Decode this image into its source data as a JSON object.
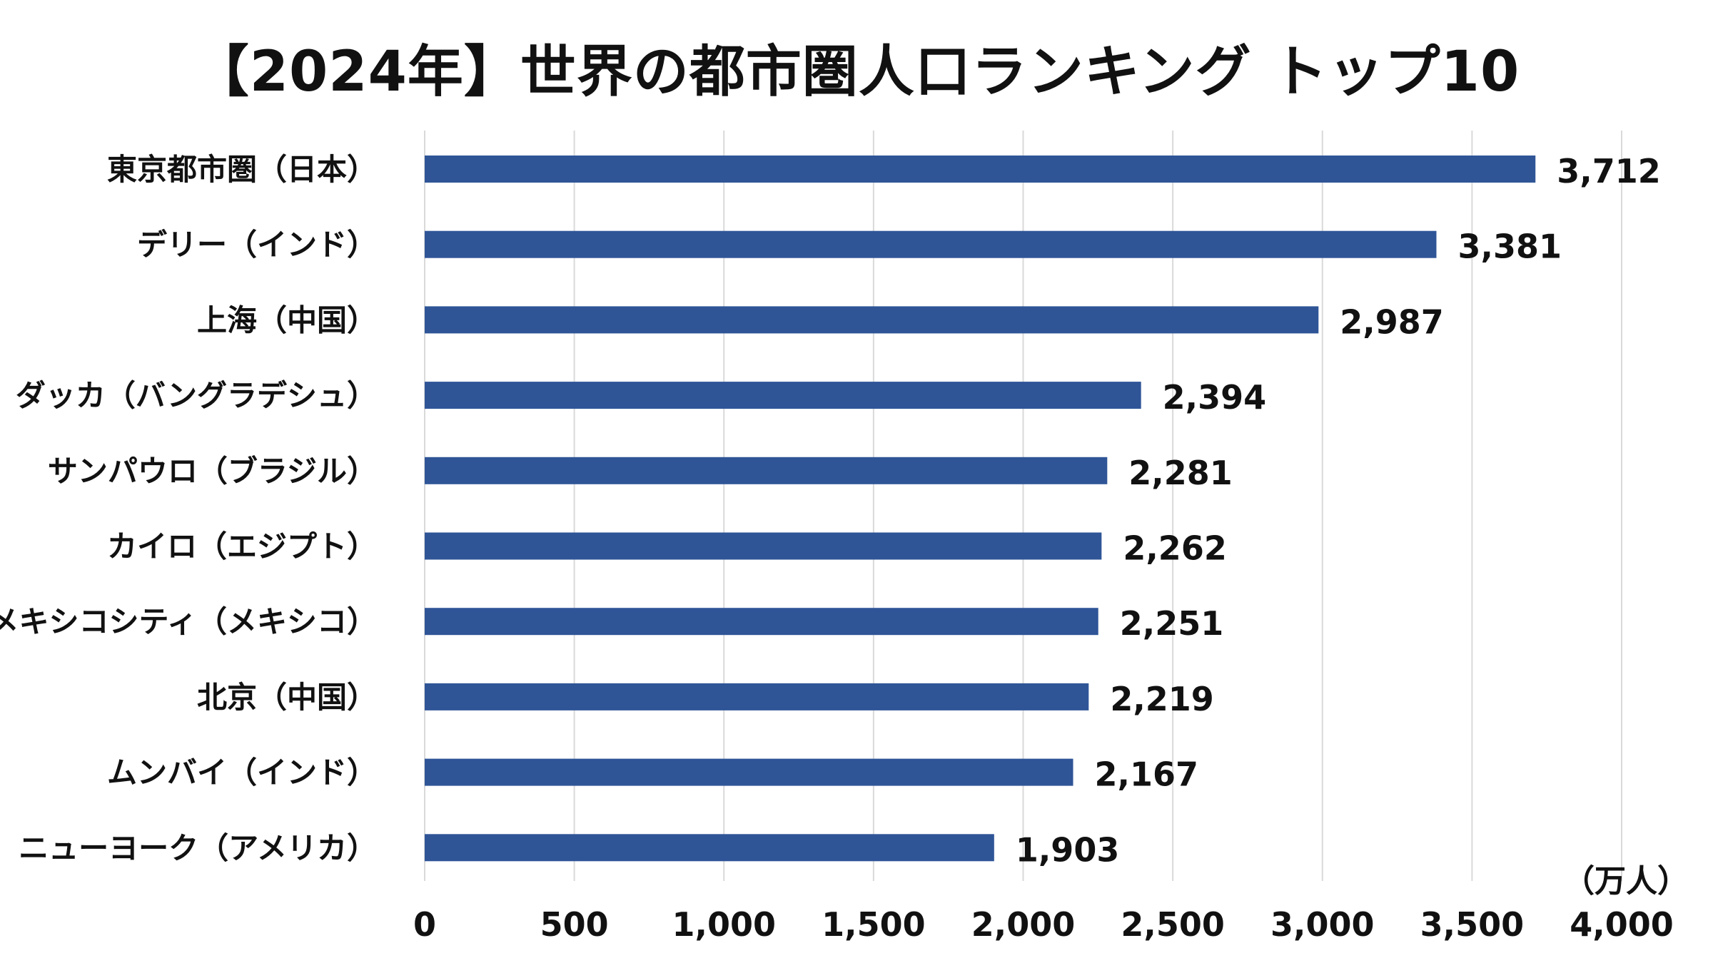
{
  "chart_data": {
    "type": "bar",
    "orientation": "horizontal",
    "title": "【2024年】世界の都市圏人口ランキング トップ10",
    "unit": "（万人）",
    "categories": [
      "東京都市圏（日本）",
      "デリー（インド）",
      "上海（中国）",
      "ダッカ（バングラデシュ）",
      "サンパウロ（ブラジル）",
      "カイロ（エジプト）",
      "メキシコシティ（メキシコ）",
      "北京（中国）",
      "ムンバイ（インド）",
      "ニューヨーク（アメリカ）"
    ],
    "values": [
      3712,
      3381,
      2987,
      2394,
      2281,
      2262,
      2251,
      2219,
      2167,
      1903
    ],
    "value_labels": [
      "3,712",
      "3,381",
      "2,987",
      "2,394",
      "2,281",
      "2,262",
      "2,251",
      "2,219",
      "2,167",
      "1,903"
    ],
    "xlim": [
      0,
      4000
    ],
    "xticks": [
      0,
      500,
      1000,
      1500,
      2000,
      2500,
      3000,
      3500,
      4000
    ],
    "xtick_labels": [
      "0",
      "500",
      "1,000",
      "1,500",
      "2,000",
      "2,500",
      "3,000",
      "3,500",
      "4,000"
    ],
    "grid": "vertical",
    "legend": "none",
    "bar_color": "#2F5597",
    "grid_color": "#D9D9D9"
  }
}
